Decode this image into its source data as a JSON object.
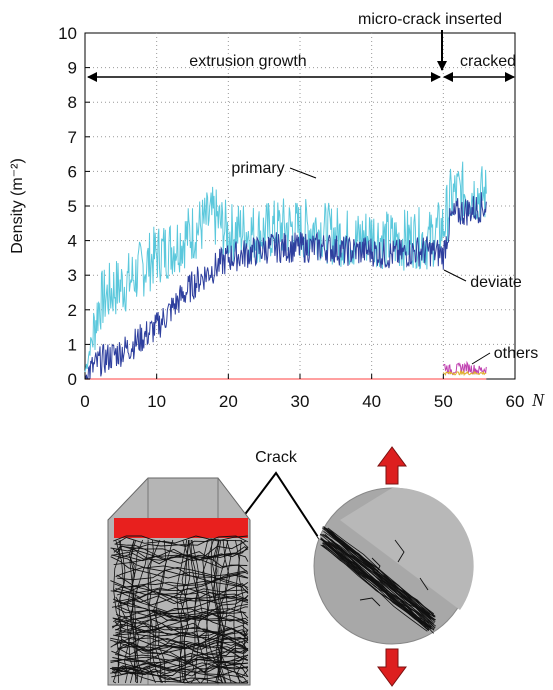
{
  "figure": {
    "crack_label": "Crack"
  },
  "chart_data": {
    "type": "line",
    "xlabel": "N",
    "ylabel": "Density (m⁻²)",
    "xlim": [
      0,
      60
    ],
    "ylim": [
      0,
      10
    ],
    "xticks": [
      "0",
      "10",
      "20",
      "30",
      "40",
      "50",
      "60"
    ],
    "yticks": [
      "0",
      "1",
      "2",
      "3",
      "4",
      "5",
      "6",
      "7",
      "8",
      "9",
      "10"
    ],
    "grid": true,
    "annotations": {
      "micro_crack": "micro-crack inserted",
      "extrusion": "extrusion growth",
      "cracked": "cracked",
      "primary": "primary",
      "deviate": "deviate",
      "others": "others"
    },
    "colors": {
      "primary": "#5bc8dc",
      "deviate": "#2e3f9e",
      "others": "#c040b0",
      "others2": "#e0b030",
      "baseline": "#ff8080"
    },
    "series": [
      {
        "name": "primary",
        "x": [
          0,
          2,
          4,
          6,
          8,
          10,
          12,
          14,
          16,
          18,
          20,
          22,
          24,
          26,
          28,
          30,
          32,
          34,
          36,
          38,
          40,
          42,
          44,
          46,
          48,
          50,
          51,
          52,
          54,
          56
        ],
        "values": [
          0.2,
          2.2,
          2.6,
          2.8,
          3.2,
          3.6,
          3.8,
          4.1,
          4.4,
          4.7,
          4.2,
          4.3,
          4.2,
          4.3,
          4.4,
          4.3,
          4.4,
          4.2,
          4.1,
          4.0,
          4.2,
          4.0,
          4.0,
          4.1,
          4.0,
          4.4,
          5.2,
          5.4,
          5.4,
          5.3
        ]
      },
      {
        "name": "deviate",
        "x": [
          0,
          2,
          4,
          6,
          8,
          10,
          12,
          14,
          16,
          18,
          20,
          22,
          24,
          26,
          28,
          30,
          32,
          34,
          36,
          38,
          40,
          42,
          44,
          46,
          48,
          50,
          51,
          52,
          54,
          56
        ],
        "values": [
          0.1,
          0.5,
          0.7,
          0.9,
          1.2,
          1.5,
          2.0,
          2.5,
          2.9,
          3.2,
          3.5,
          3.6,
          3.7,
          3.8,
          3.8,
          3.8,
          3.8,
          3.8,
          3.7,
          3.7,
          3.7,
          3.6,
          3.6,
          3.7,
          3.7,
          3.6,
          4.6,
          4.8,
          4.9,
          5.0
        ]
      },
      {
        "name": "others",
        "x": [
          50,
          51,
          52,
          53,
          54,
          55,
          56
        ],
        "values": [
          0.4,
          0.25,
          0.3,
          0.35,
          0.3,
          0.25,
          0.3
        ]
      }
    ]
  }
}
